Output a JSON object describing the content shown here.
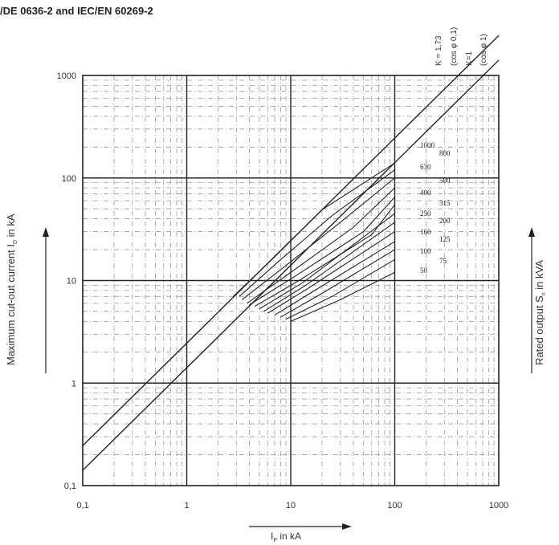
{
  "page": {
    "title": "/DE 0636-2 and IEC/EN 60269-2"
  },
  "colors": {
    "ink": "#222222",
    "grid_dense": "#9a9a9a",
    "background": "#ffffff"
  },
  "chart_data": {
    "type": "line",
    "title": "/DE 0636-2 and IEC/EN 60269-2",
    "xscale": "log",
    "yscale": "log",
    "xlim": [
      0.1,
      1000
    ],
    "ylim": [
      0.1,
      1000
    ],
    "x_ticks": [
      "0,1",
      "1",
      "10",
      "100",
      "1000"
    ],
    "y_ticks": [
      "0,1",
      "1",
      "10",
      "100",
      "1000"
    ],
    "xlabel": {
      "main": "I",
      "sub": "P",
      "rest": " in kA"
    },
    "ylabel": {
      "main": "Maximum cut-out current I",
      "sub": "D",
      "rest": " in kA"
    },
    "right_label": {
      "main": "Rated output S",
      "sub": "n",
      "rest": " in kVA"
    },
    "grid": true,
    "k_lines": [
      {
        "label": "K = 1,73",
        "sublabel": "(cos φ 0,1)",
        "x": [
          0.1,
          1000
        ],
        "y": [
          0.245,
          2450
        ]
      },
      {
        "label": "K=1",
        "sublabel": "(cos φ 1)",
        "x": [
          0.1,
          1000
        ],
        "y": [
          0.141,
          1410
        ]
      }
    ],
    "series": [
      {
        "name": "1000",
        "x": [
          2.8,
          7,
          20,
          100
        ],
        "y": [
          7,
          17,
          49,
          140
        ]
      },
      {
        "name": "800",
        "x": [
          3.2,
          8,
          25,
          100
        ],
        "y": [
          7,
          16,
          43,
          120
        ]
      },
      {
        "name": "630",
        "x": [
          3.4,
          9,
          30,
          100
        ],
        "y": [
          6.5,
          14,
          37,
          100
        ]
      },
      {
        "name": "500",
        "x": [
          3.8,
          10,
          40,
          100
        ],
        "y": [
          6,
          12,
          33,
          80
        ]
      },
      {
        "name": "400",
        "x": [
          4,
          11,
          50,
          100
        ],
        "y": [
          5.8,
          11,
          30,
          65
        ]
      },
      {
        "name": "315",
        "x": [
          4.5,
          12,
          60,
          100
        ],
        "y": [
          5.6,
          10,
          28,
          55
        ]
      },
      {
        "name": "250",
        "x": [
          5,
          13,
          100
        ],
        "y": [
          5.3,
          9.5,
          45
        ]
      },
      {
        "name": "200",
        "x": [
          5.5,
          14,
          100
        ],
        "y": [
          5,
          9,
          37
        ]
      },
      {
        "name": "160",
        "x": [
          6,
          15,
          100
        ],
        "y": [
          4.8,
          8.5,
          30
        ]
      },
      {
        "name": "125",
        "x": [
          7,
          17,
          100
        ],
        "y": [
          4.6,
          8,
          24
        ]
      },
      {
        "name": "100",
        "x": [
          8,
          20,
          100
        ],
        "y": [
          4.4,
          7.5,
          20
        ]
      },
      {
        "name": "75",
        "x": [
          9,
          25,
          100
        ],
        "y": [
          4.2,
          7,
          16
        ]
      },
      {
        "name": "50",
        "x": [
          10,
          30,
          100
        ],
        "y": [
          4,
          6.5,
          12
        ]
      }
    ],
    "output_labels": {
      "col1": [
        "1000",
        "630",
        "400",
        "250",
        "160",
        "100",
        "50"
      ],
      "col2": [
        "800",
        "500",
        "315",
        "200",
        "125",
        "75"
      ]
    }
  }
}
